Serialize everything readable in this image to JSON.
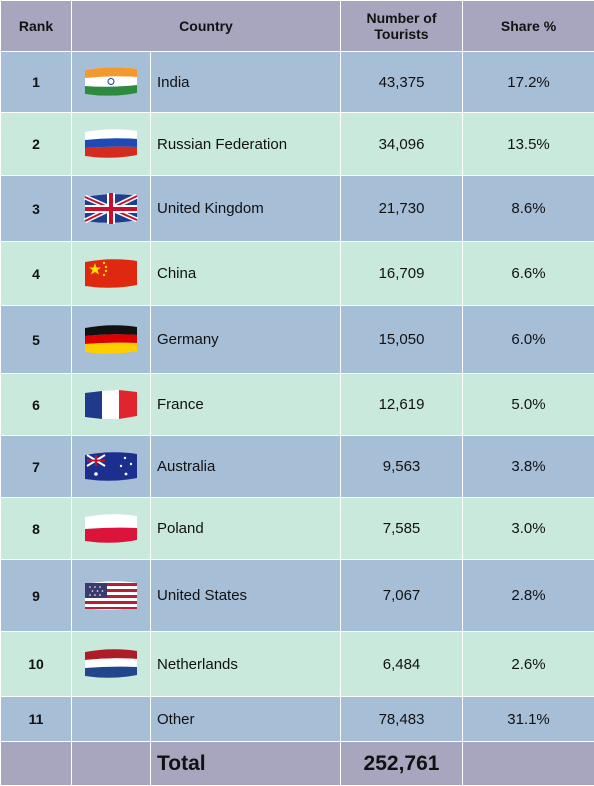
{
  "header": {
    "rank": "Rank",
    "country": "Country",
    "tourists_line1": "Number of",
    "tourists_line2": "Tourists",
    "share": "Share %"
  },
  "rows": [
    {
      "rank": "1",
      "country": "India",
      "tourists": "43,375",
      "share": "17.2%",
      "flag": "india-flag-icon"
    },
    {
      "rank": "2",
      "country": "Russian Federation",
      "tourists": "34,096",
      "share": "13.5%",
      "flag": "russia-flag-icon"
    },
    {
      "rank": "3",
      "country": "United Kingdom",
      "tourists": "21,730",
      "share": "8.6%",
      "flag": "uk-flag-icon"
    },
    {
      "rank": "4",
      "country": "China",
      "tourists": "16,709",
      "share": "6.6%",
      "flag": "china-flag-icon"
    },
    {
      "rank": "5",
      "country": "Germany",
      "tourists": "15,050",
      "share": "6.0%",
      "flag": "germany-flag-icon"
    },
    {
      "rank": "6",
      "country": "France",
      "tourists": "12,619",
      "share": "5.0%",
      "flag": "france-flag-icon"
    },
    {
      "rank": "7",
      "country": "Australia",
      "tourists": "9,563",
      "share": "3.8%",
      "flag": "australia-flag-icon"
    },
    {
      "rank": "8",
      "country": "Poland",
      "tourists": "7,585",
      "share": "3.0%",
      "flag": "poland-flag-icon"
    },
    {
      "rank": "9",
      "country": "United States",
      "tourists": "7,067",
      "share": "2.8%",
      "flag": "usa-flag-icon"
    },
    {
      "rank": "10",
      "country": "Netherlands",
      "tourists": "6,484",
      "share": "2.6%",
      "flag": "netherlands-flag-icon"
    },
    {
      "rank": "11",
      "country": "Other",
      "tourists": "78,483",
      "share": "31.1%",
      "flag": ""
    }
  ],
  "total": {
    "label": "Total",
    "value": "252,761"
  },
  "colors": {
    "header": "#a8a6bf",
    "row_odd": "#a7bed7",
    "row_even": "#c9e9dc"
  }
}
